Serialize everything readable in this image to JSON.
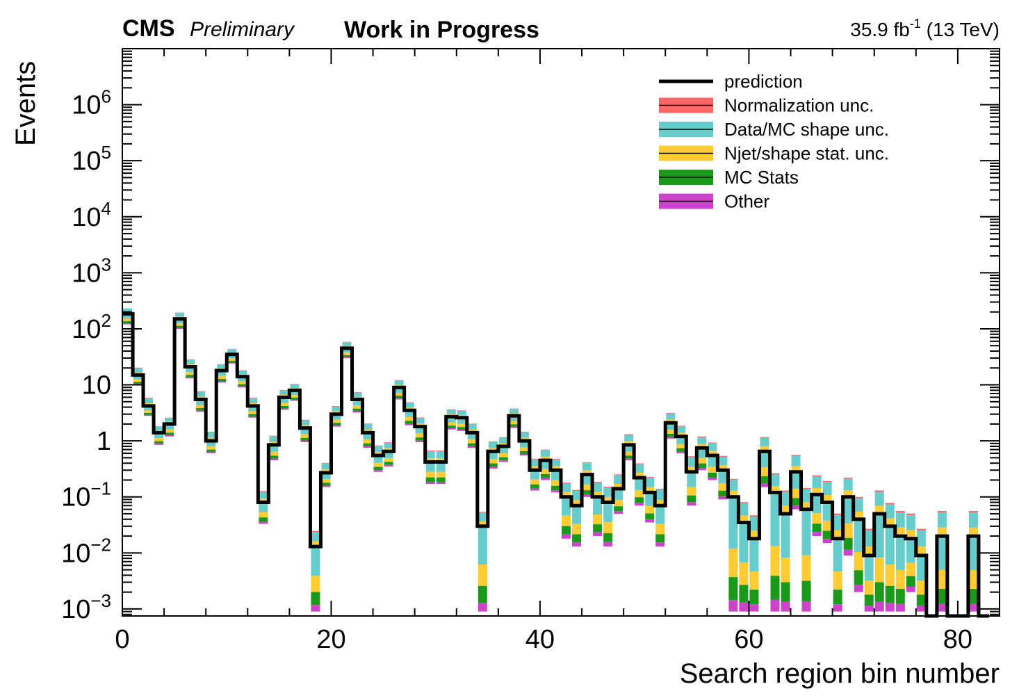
{
  "header": {
    "experiment": "CMS",
    "status": "Preliminary",
    "note": "Work in Progress",
    "lumi_value": "35.9 fb",
    "lumi_exp": "-1",
    "lumi_energy": " (13 TeV)"
  },
  "colors": {
    "prediction": "#000000",
    "normalization": "#ff6666",
    "datamc": "#66cccc",
    "njet": "#ffcc33",
    "mcstats": "#1a991a",
    "other": "#cc44cc"
  },
  "chart_data": {
    "type": "bar",
    "title": "",
    "xlabel": "Search region bin number",
    "ylabel": "Events",
    "xlim": [
      0,
      84
    ],
    "ylim": [
      0.00075,
      10000000
    ],
    "yscale": "log",
    "x_ticks": [
      0,
      20,
      40,
      60,
      80
    ],
    "y_tick_labels": [
      {
        "value": 0.001,
        "base": "10",
        "exp": "−3"
      },
      {
        "value": 0.01,
        "base": "10",
        "exp": "−2"
      },
      {
        "value": 0.1,
        "base": "10",
        "exp": "−1"
      },
      {
        "value": 1,
        "base": "1",
        "exp": ""
      },
      {
        "value": 10,
        "base": "10",
        "exp": ""
      },
      {
        "value": 100,
        "base": "10",
        "exp": "2"
      },
      {
        "value": 1000,
        "base": "10",
        "exp": "3"
      },
      {
        "value": 10000,
        "base": "10",
        "exp": "4"
      },
      {
        "value": 100000,
        "base": "10",
        "exp": "5"
      },
      {
        "value": 1000000,
        "base": "10",
        "exp": "6"
      }
    ],
    "legend_position": "top-right",
    "legend": [
      {
        "label": "prediction",
        "kind": "line",
        "color_key": "prediction"
      },
      {
        "label": "Normalization unc.",
        "kind": "band",
        "color_key": "normalization"
      },
      {
        "label": "Data/MC shape unc.",
        "kind": "band",
        "color_key": "datamc"
      },
      {
        "label": "Njet/shape stat. unc.",
        "kind": "band",
        "color_key": "njet"
      },
      {
        "label": "MC Stats",
        "kind": "band",
        "color_key": "mcstats"
      },
      {
        "label": "Other",
        "kind": "band",
        "color_key": "other"
      }
    ],
    "prediction": [
      185,
      15,
      4.2,
      1.4,
      2.0,
      150,
      21,
      5.5,
      1.0,
      18,
      35,
      14,
      4.2,
      0.08,
      0.85,
      6.0,
      8.0,
      1.7,
      0.013,
      0.27,
      3.0,
      45,
      5.5,
      1.4,
      0.55,
      0.65,
      9.0,
      3.5,
      1.8,
      0.42,
      0.42,
      2.7,
      2.6,
      1.4,
      0.03,
      0.65,
      0.8,
      2.8,
      1.0,
      0.3,
      0.45,
      0.3,
      0.1,
      0.07,
      0.25,
      0.1,
      0.08,
      0.14,
      0.85,
      0.22,
      0.12,
      0.07,
      2.1,
      1.2,
      0.28,
      0.75,
      0.55,
      0.3,
      0.1,
      0.035,
      0.018,
      0.65,
      0.12,
      0.05,
      0.28,
      0.06,
      0.11,
      0.08,
      0.018,
      0.1,
      0.04,
      0.009,
      0.05,
      0.03,
      0.02,
      0.018,
      0.009,
      0.0007,
      0.02,
      0.0007,
      0.0007,
      0.02,
      0.0007
    ],
    "uncertainty_bands": {
      "upper_factor": [
        1.25,
        1.35,
        1.4,
        1.3,
        1.3,
        1.3,
        1.35,
        1.4,
        1.45,
        1.3,
        1.25,
        1.3,
        1.4,
        1.6,
        1.45,
        1.35,
        1.3,
        1.4,
        1.9,
        1.5,
        1.4,
        1.3,
        1.35,
        1.45,
        1.5,
        1.45,
        1.35,
        1.4,
        1.45,
        1.6,
        1.6,
        1.35,
        1.35,
        1.45,
        1.8,
        1.5,
        1.45,
        1.35,
        1.45,
        1.6,
        1.55,
        1.6,
        1.8,
        1.9,
        1.65,
        1.85,
        1.9,
        1.8,
        1.55,
        1.8,
        1.9,
        2.0,
        1.5,
        1.55,
        1.9,
        1.6,
        1.7,
        1.8,
        2.1,
        2.3,
        2.6,
        1.8,
        2.2,
        2.6,
        2.0,
        2.4,
        2.2,
        2.4,
        2.8,
        2.2,
        2.5,
        3.0,
        2.6,
        2.6,
        2.8,
        2.8,
        3.0,
        1,
        2.8,
        1,
        1,
        2.8,
        1
      ],
      "lower_floor": [
        120,
        10,
        2.8,
        0.85,
        1.2,
        100,
        13,
        3.3,
        0.6,
        11,
        24,
        9,
        2.6,
        0.033,
        0.45,
        3.6,
        5.2,
        0.95,
        0.0009,
        0.15,
        1.8,
        30,
        3.2,
        0.75,
        0.28,
        0.35,
        5.5,
        1.9,
        0.95,
        0.17,
        0.17,
        1.6,
        1.5,
        0.75,
        0.0009,
        0.32,
        0.42,
        1.7,
        0.55,
        0.13,
        0.2,
        0.12,
        0.018,
        0.013,
        0.1,
        0.02,
        0.013,
        0.05,
        0.45,
        0.07,
        0.035,
        0.013,
        1.1,
        0.6,
        0.07,
        0.3,
        0.2,
        0.09,
        0.0009,
        0.0009,
        0.0009,
        0.15,
        0.0009,
        0.0009,
        0.06,
        0.0009,
        0.02,
        0.015,
        0.0009,
        0.009,
        0.002,
        0.0009,
        0.0009,
        0.0009,
        0.0009,
        0.002,
        0.0009,
        0.0009,
        0.0009,
        0.0009,
        0.0009,
        0.0009,
        0.0009
      ]
    }
  }
}
